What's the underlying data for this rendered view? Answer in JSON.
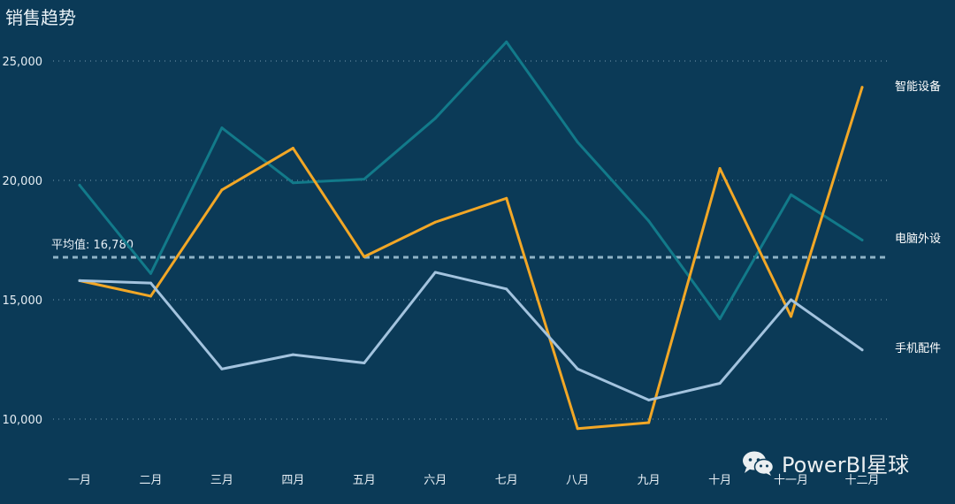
{
  "title": "销售趋势",
  "watermark": {
    "text": "PowerBI星球",
    "icon": "wechat-icon"
  },
  "chart_data": {
    "type": "line",
    "categories": [
      "一月",
      "二月",
      "三月",
      "四月",
      "五月",
      "六月",
      "七月",
      "八月",
      "九月",
      "十月",
      "十一月",
      "十二月"
    ],
    "ylim": [
      8000,
      26500
    ],
    "yticks": [
      10000,
      15000,
      20000,
      25000
    ],
    "ytick_labels": [
      "10,000",
      "15,000",
      "20,000",
      "25,000"
    ],
    "grid": true,
    "series": [
      {
        "name": "电脑外设",
        "color": "#127a8a",
        "values": [
          19800,
          16100,
          22200,
          19900,
          20050,
          22600,
          25800,
          21600,
          18300,
          14200,
          19400,
          17500
        ]
      },
      {
        "name": "智能设备",
        "color": "#f2a726",
        "values": [
          15800,
          15150,
          19600,
          21350,
          16800,
          18250,
          19250,
          9600,
          9850,
          20500,
          14300,
          23900
        ]
      },
      {
        "name": "手机配件",
        "color": "#a3c3de",
        "values": [
          15800,
          15700,
          12100,
          12700,
          12350,
          16150,
          15450,
          12100,
          10800,
          11500,
          15000,
          12900
        ]
      }
    ],
    "reference_line": {
      "label": "平均值: 16,780",
      "value": 16780
    }
  }
}
